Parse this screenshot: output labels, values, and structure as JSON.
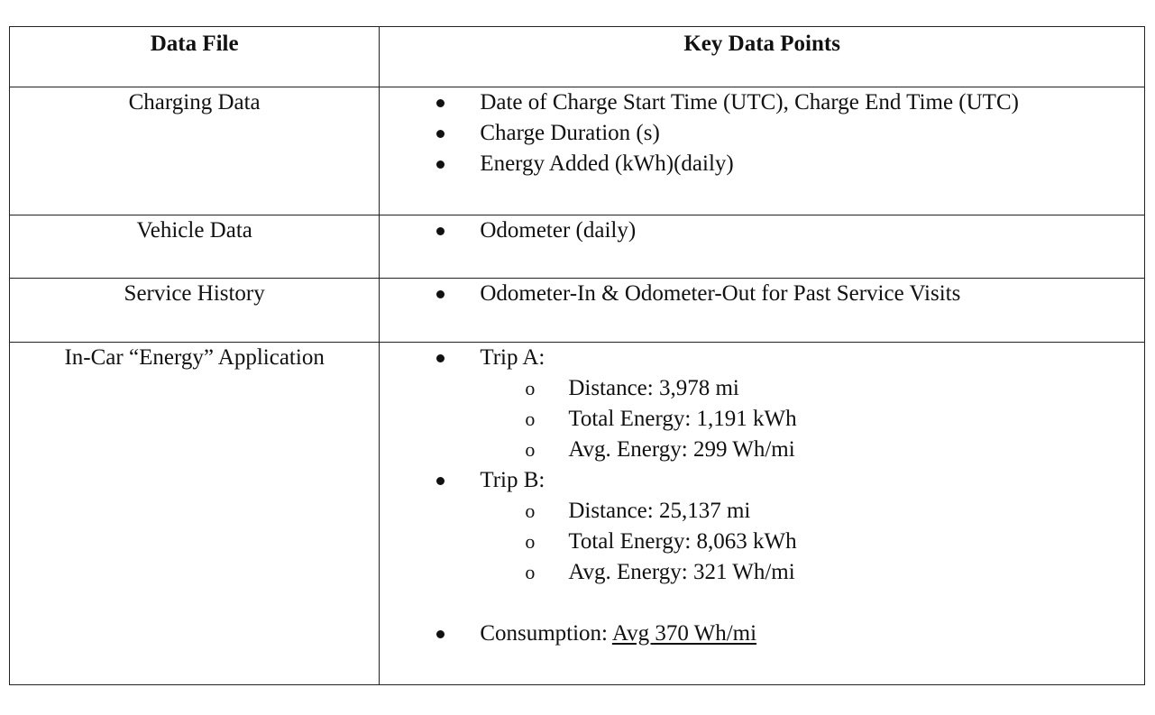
{
  "table": {
    "headers": {
      "data_file": "Data File",
      "key_data_points": "Key Data Points"
    },
    "rows": [
      {
        "file": "Charging Data",
        "points": [
          "Date of Charge Start Time (UTC), Charge End Time (UTC)",
          "Charge Duration (s)",
          "Energy Added (kWh)(daily)"
        ]
      },
      {
        "file": "Vehicle Data",
        "points": [
          "Odometer (daily)"
        ]
      },
      {
        "file": "Service History",
        "points": [
          "Odometer-In & Odometer-Out for Past Service Visits"
        ]
      },
      {
        "file": "In-Car “Energy” Application",
        "trip_a": {
          "label": "Trip A:",
          "distance": "Distance: 3,978 mi",
          "total_energy": "Total Energy: 1,191 kWh",
          "avg_energy": "Avg. Energy: 299 Wh/mi"
        },
        "trip_b": {
          "label": "Trip B:",
          "distance": "Distance: 25,137 mi",
          "total_energy": "Total Energy: 8,063 kWh",
          "avg_energy": "Avg. Energy: 321 Wh/mi"
        },
        "consumption": {
          "label": "Consumption: ",
          "value": "Avg 370 Wh/mi"
        }
      }
    ],
    "sub_marker": "o"
  }
}
